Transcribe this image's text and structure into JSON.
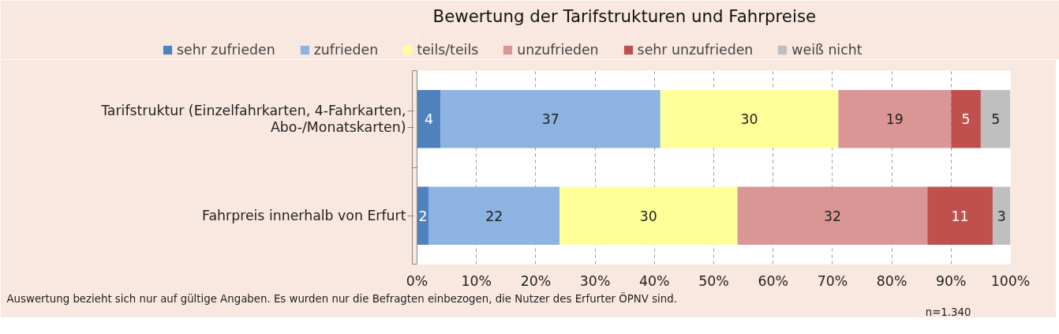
{
  "chart_data": {
    "type": "bar",
    "orientation": "horizontal",
    "stacked": true,
    "title": "Bewertung der Tarifstrukturen und Fahrpreise",
    "categories": [
      "Tarifstruktur (Einzelfahrkarten, 4-Fahrkarten, Abo-/Monatskarten)",
      "Fahrpreis innerhalb von Erfurt"
    ],
    "series": [
      {
        "name": "sehr zufrieden",
        "color": "#4f81bd",
        "values": [
          4,
          2
        ]
      },
      {
        "name": "zufrieden",
        "color": "#8db3e2",
        "values": [
          37,
          22
        ]
      },
      {
        "name": "teils/teils",
        "color": "#ffff99",
        "values": [
          30,
          30
        ]
      },
      {
        "name": "unzufrieden",
        "color": "#d99694",
        "values": [
          19,
          32
        ]
      },
      {
        "name": "sehr unzufrieden",
        "color": "#c0504d",
        "values": [
          5,
          11
        ]
      },
      {
        "name": "weiß nicht",
        "color": "#bfbfbf",
        "values": [
          5,
          3
        ]
      }
    ],
    "xlim": [
      0,
      100
    ],
    "xticks": [
      {
        "value": 0,
        "label": "0%"
      },
      {
        "value": 10,
        "label": "10%"
      },
      {
        "value": 20,
        "label": "20%"
      },
      {
        "value": 30,
        "label": "30%"
      },
      {
        "value": 40,
        "label": "40%"
      },
      {
        "value": 50,
        "label": "50%"
      },
      {
        "value": 60,
        "label": "60%"
      },
      {
        "value": 70,
        "label": "70%"
      },
      {
        "value": 80,
        "label": "80%"
      },
      {
        "value": 90,
        "label": "90%"
      },
      {
        "value": 100,
        "label": "100%"
      }
    ],
    "grid": "x",
    "legend": "top",
    "data_labels": true,
    "annotations": [
      "Auswertung bezieht sich nur auf gültige Angaben. Es wurden nur die Befragten einbezogen, die Nutzer des Erfurter ÖPNV sind.",
      "n=1.340"
    ]
  }
}
